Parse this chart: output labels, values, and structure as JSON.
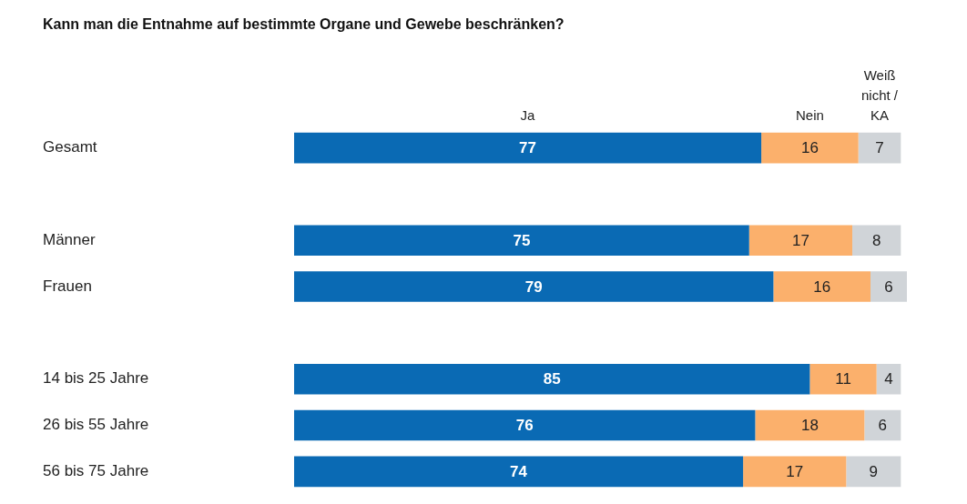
{
  "chart_data": {
    "type": "bar",
    "orientation": "horizontal",
    "stacked": true,
    "title": "Kann man die Entnahme auf bestimmte Organe und Gewebe beschränken?",
    "categories": [
      "Gesamt",
      null,
      "Männer",
      "Frauen",
      null,
      "14 bis 25 Jahre",
      "26 bis 55 Jahre",
      "56 bis 75 Jahre"
    ],
    "series": [
      {
        "name": "Ja",
        "color": "#0a6ab4",
        "values": [
          77,
          null,
          75,
          79,
          null,
          85,
          76,
          74
        ]
      },
      {
        "name": "Nein",
        "color": "#fbb06c",
        "values": [
          16,
          null,
          17,
          16,
          null,
          11,
          18,
          17
        ]
      },
      {
        "name": "Weiß nicht / KA",
        "color": "#d0d4d8",
        "values": [
          7,
          null,
          8,
          6,
          null,
          4,
          6,
          9
        ]
      }
    ],
    "xlim": [
      0,
      101
    ],
    "data_labels": true
  }
}
